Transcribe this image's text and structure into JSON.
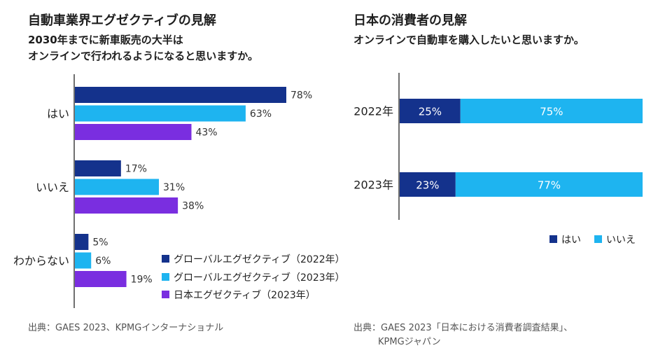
{
  "colors": {
    "global_2022": "#14328c",
    "global_2023": "#1eb4f0",
    "japan_2023": "#7a2ee0",
    "consumer_yes": "#14328c",
    "consumer_no": "#1eb4f0"
  },
  "left": {
    "title": "自動車業界エグゼクティブの見解",
    "subtitle_line1": "2030年までに新車販売の大半は",
    "subtitle_line2": "オンラインで行われるようになると思いますか。",
    "source": "出典：GAES 2023、KPMGインターナショナル"
  },
  "right": {
    "title": "日本の消費者の見解",
    "subtitle": "オンラインで自動車を購入したいと思いますか。",
    "source_line1": "出典：GAES 2023「日本における消費者調査結果」、",
    "source_line2": "KPMGジャパン"
  },
  "chart_data": [
    {
      "type": "bar",
      "orientation": "horizontal",
      "categories": [
        "はい",
        "いいえ",
        "わからない"
      ],
      "series": [
        {
          "name": "グローバルエグゼクティブ（2022年）",
          "values": [
            78,
            17,
            5
          ],
          "labels": [
            "78%",
            "17%",
            "5%"
          ]
        },
        {
          "name": "グローバルエグゼクティブ（2023年）",
          "values": [
            63,
            31,
            6
          ],
          "labels": [
            "63%",
            "31%",
            "6%"
          ]
        },
        {
          "name": "日本エグゼクティブ（2023年）",
          "values": [
            43,
            38,
            19
          ],
          "labels": [
            "43%",
            "38%",
            "19%"
          ]
        }
      ],
      "xlim": [
        0,
        100
      ],
      "legend": "bottom-right",
      "title": "自動車業界エグゼクティブの見解"
    },
    {
      "type": "bar",
      "orientation": "horizontal",
      "stacked": true,
      "categories": [
        "2022年",
        "2023年"
      ],
      "series": [
        {
          "name": "はい",
          "values": [
            25,
            23
          ],
          "labels": [
            "25%",
            "23%"
          ]
        },
        {
          "name": "いいえ",
          "values": [
            75,
            77
          ],
          "labels": [
            "75%",
            "77%"
          ]
        }
      ],
      "xlim": [
        0,
        100
      ],
      "legend": "bottom",
      "title": "日本の消費者の見解"
    }
  ]
}
